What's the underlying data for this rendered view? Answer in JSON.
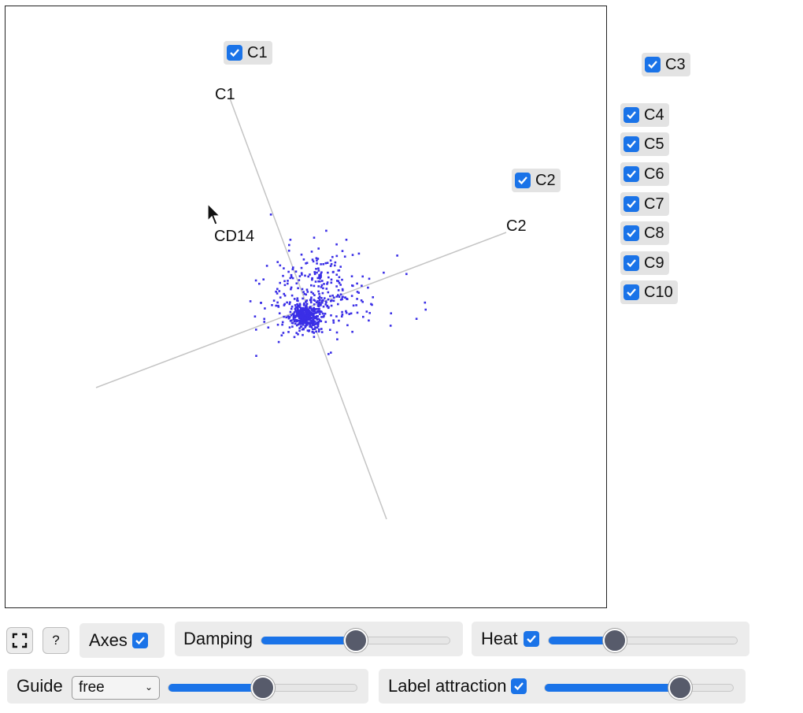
{
  "plot": {
    "axes": [
      {
        "label": "C1"
      },
      {
        "label": "C2"
      },
      {
        "label": "CD14"
      }
    ],
    "point_color": "#3a2ee6"
  },
  "dimension_toggles": [
    {
      "label": "C1",
      "checked": true
    },
    {
      "label": "C2",
      "checked": true
    },
    {
      "label": "C3",
      "checked": true
    },
    {
      "label": "C4",
      "checked": true
    },
    {
      "label": "C5",
      "checked": true
    },
    {
      "label": "C6",
      "checked": true
    },
    {
      "label": "C7",
      "checked": true
    },
    {
      "label": "C8",
      "checked": true
    },
    {
      "label": "C9",
      "checked": true
    },
    {
      "label": "C10",
      "checked": true
    }
  ],
  "controls": {
    "fullscreen_icon": "fullscreen-icon",
    "help_label": "?",
    "axes_label": "Axes",
    "axes_checked": true,
    "damping_label": "Damping",
    "damping_value": 0.5,
    "heat_label": "Heat",
    "heat_checked": true,
    "heat_value": 0.35,
    "guide_label": "Guide",
    "guide_value": "free",
    "guide_slider_value": 0.5,
    "label_attraction_label": "Label attraction",
    "label_attraction_checked": true,
    "label_attraction_value": 0.72
  },
  "colors": {
    "accent": "#1a73e8",
    "thumb": "#575b6b",
    "panel": "#ececec"
  }
}
